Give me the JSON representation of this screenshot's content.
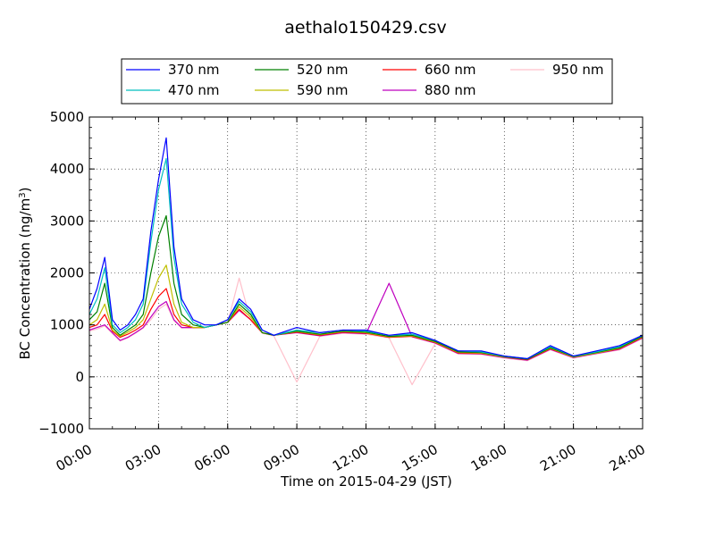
{
  "chart_data": {
    "type": "line",
    "title": "aethalo150429.csv",
    "xlabel": "Time on 2015-04-29 (JST)",
    "ylabel_main": "BC Concentration (ng/m",
    "ylabel_sup": "3",
    "ylabel_close": ")",
    "xlim": [
      "00:00",
      "24:00"
    ],
    "ylim": [
      -1000,
      5000
    ],
    "x_ticks": [
      "00:00",
      "03:00",
      "06:00",
      "09:00",
      "12:00",
      "15:00",
      "18:00",
      "21:00",
      "24:00"
    ],
    "y_ticks": [
      "−1000",
      "0",
      "1000",
      "2000",
      "3000",
      "4000",
      "5000"
    ],
    "y_tick_values": [
      -1000,
      0,
      1000,
      2000,
      3000,
      4000,
      5000
    ],
    "grid": true,
    "legend_position": "top",
    "series": [
      {
        "name": "370 nm",
        "color": "#0000ff",
        "x": [
          "00:00",
          "00:20",
          "00:40",
          "01:00",
          "01:20",
          "01:40",
          "02:00",
          "02:20",
          "02:40",
          "03:00",
          "03:20",
          "03:40",
          "04:00",
          "04:30",
          "05:00",
          "05:30",
          "06:00",
          "06:30",
          "07:00",
          "07:30",
          "08:00",
          "09:00",
          "10:00",
          "11:00",
          "12:00",
          "13:00",
          "14:00",
          "15:00",
          "16:00",
          "17:00",
          "18:00",
          "19:00",
          "20:00",
          "21:00",
          "22:00",
          "23:00",
          "24:00"
        ],
        "values": [
          1300,
          1700,
          2300,
          1100,
          900,
          1000,
          1200,
          1500,
          2800,
          3800,
          4600,
          2500,
          1500,
          1100,
          1000,
          1000,
          1100,
          1500,
          1300,
          900,
          800,
          950,
          850,
          900,
          900,
          800,
          850,
          700,
          500,
          500,
          400,
          350,
          600,
          400,
          500,
          600,
          800
        ]
      },
      {
        "name": "470 nm",
        "color": "#00bfbf",
        "x": [
          "00:00",
          "00:20",
          "00:40",
          "01:00",
          "01:20",
          "01:40",
          "02:00",
          "02:20",
          "02:40",
          "03:00",
          "03:20",
          "03:40",
          "04:00",
          "04:30",
          "05:00",
          "05:30",
          "06:00",
          "06:30",
          "07:00",
          "07:30",
          "08:00",
          "09:00",
          "10:00",
          "11:00",
          "12:00",
          "13:00",
          "14:00",
          "15:00",
          "16:00",
          "17:00",
          "18:00",
          "19:00",
          "20:00",
          "21:00",
          "22:00",
          "23:00",
          "24:00"
        ],
        "values": [
          1200,
          1500,
          2100,
          1000,
          850,
          950,
          1100,
          1400,
          2600,
          3600,
          4200,
          2300,
          1400,
          1050,
          950,
          1000,
          1100,
          1450,
          1250,
          900,
          800,
          900,
          850,
          900,
          880,
          800,
          820,
          700,
          500,
          480,
          400,
          350,
          580,
          400,
          480,
          580,
          800
        ]
      },
      {
        "name": "520 nm",
        "color": "#008000",
        "x": [
          "00:00",
          "00:20",
          "00:40",
          "01:00",
          "01:20",
          "01:40",
          "02:00",
          "02:20",
          "02:40",
          "03:00",
          "03:20",
          "03:40",
          "04:00",
          "04:30",
          "05:00",
          "05:30",
          "06:00",
          "06:30",
          "07:00",
          "07:30",
          "08:00",
          "09:00",
          "10:00",
          "11:00",
          "12:00",
          "13:00",
          "14:00",
          "15:00",
          "16:00",
          "17:00",
          "18:00",
          "19:00",
          "20:00",
          "21:00",
          "22:00",
          "23:00",
          "24:00"
        ],
        "values": [
          1100,
          1250,
          1800,
          950,
          800,
          900,
          1000,
          1200,
          2000,
          2700,
          3100,
          1800,
          1200,
          1000,
          950,
          1000,
          1050,
          1400,
          1200,
          850,
          800,
          880,
          820,
          880,
          860,
          780,
          800,
          680,
          480,
          470,
          390,
          340,
          560,
          390,
          470,
          560,
          780
        ]
      },
      {
        "name": "590 nm",
        "color": "#bfbf00",
        "x": [
          "00:00",
          "00:20",
          "00:40",
          "01:00",
          "01:20",
          "01:40",
          "02:00",
          "02:20",
          "02:40",
          "03:00",
          "03:20",
          "03:40",
          "04:00",
          "04:30",
          "05:00",
          "05:30",
          "06:00",
          "06:30",
          "07:00",
          "07:30",
          "08:00",
          "09:00",
          "10:00",
          "11:00",
          "12:00",
          "13:00",
          "14:00",
          "15:00",
          "16:00",
          "17:00",
          "18:00",
          "19:00",
          "20:00",
          "21:00",
          "22:00",
          "23:00",
          "24:00"
        ],
        "values": [
          1000,
          1100,
          1400,
          900,
          780,
          860,
          950,
          1100,
          1500,
          1900,
          2150,
          1400,
          1050,
          950,
          950,
          1000,
          1050,
          1350,
          1150,
          850,
          800,
          870,
          810,
          870,
          850,
          770,
          790,
          670,
          470,
          460,
          380,
          340,
          550,
          380,
          460,
          550,
          770
        ]
      },
      {
        "name": "660 nm",
        "color": "#ff0000",
        "x": [
          "00:00",
          "00:20",
          "00:40",
          "01:00",
          "01:20",
          "01:40",
          "02:00",
          "02:20",
          "02:40",
          "03:00",
          "03:20",
          "03:40",
          "04:00",
          "04:30",
          "05:00",
          "05:30",
          "06:00",
          "06:30",
          "07:00",
          "07:30",
          "08:00",
          "09:00",
          "10:00",
          "11:00",
          "12:00",
          "13:00",
          "14:00",
          "15:00",
          "16:00",
          "17:00",
          "18:00",
          "19:00",
          "20:00",
          "21:00",
          "22:00",
          "23:00",
          "24:00"
        ],
        "values": [
          950,
          1000,
          1200,
          880,
          760,
          820,
          900,
          1000,
          1300,
          1550,
          1700,
          1200,
          1000,
          950,
          950,
          1000,
          1050,
          1300,
          1100,
          850,
          800,
          860,
          800,
          860,
          840,
          760,
          780,
          660,
          460,
          450,
          380,
          330,
          540,
          380,
          460,
          540,
          760
        ]
      },
      {
        "name": "880 nm",
        "color": "#bf00bf",
        "x": [
          "00:00",
          "00:20",
          "00:40",
          "01:00",
          "01:20",
          "01:40",
          "02:00",
          "02:20",
          "02:40",
          "03:00",
          "03:20",
          "03:40",
          "04:00",
          "04:30",
          "05:00",
          "05:30",
          "06:00",
          "06:30",
          "07:00",
          "07:30",
          "08:00",
          "09:00",
          "10:00",
          "11:00",
          "12:00",
          "13:00",
          "14:00",
          "15:00",
          "16:00",
          "17:00",
          "18:00",
          "19:00",
          "20:00",
          "21:00",
          "22:00",
          "23:00",
          "24:00"
        ],
        "values": [
          900,
          950,
          1000,
          850,
          700,
          760,
          850,
          950,
          1150,
          1350,
          1450,
          1100,
          950,
          950,
          950,
          1000,
          1050,
          1280,
          1100,
          850,
          800,
          850,
          790,
          850,
          830,
          1800,
          770,
          650,
          450,
          440,
          370,
          320,
          530,
          370,
          450,
          530,
          750
        ]
      },
      {
        "name": "950 nm",
        "color": "#ffc0cb",
        "x": [
          "00:00",
          "00:20",
          "00:40",
          "01:00",
          "01:20",
          "01:40",
          "02:00",
          "02:20",
          "02:40",
          "03:00",
          "03:20",
          "03:40",
          "04:00",
          "04:30",
          "05:00",
          "05:30",
          "06:00",
          "06:30",
          "07:00",
          "07:30",
          "08:00",
          "09:00",
          "10:00",
          "11:00",
          "12:00",
          "13:00",
          "14:00",
          "15:00",
          "16:00",
          "17:00",
          "18:00",
          "19:00",
          "20:00",
          "21:00",
          "22:00",
          "23:00",
          "24:00"
        ],
        "values": [
          880,
          920,
          980,
          830,
          690,
          750,
          840,
          940,
          1100,
          1300,
          1400,
          1080,
          940,
          940,
          950,
          1000,
          1050,
          1900,
          1080,
          840,
          790,
          -100,
          780,
          840,
          820,
          750,
          -150,
          640,
          440,
          430,
          360,
          310,
          520,
          360,
          440,
          520,
          740
        ]
      }
    ]
  }
}
